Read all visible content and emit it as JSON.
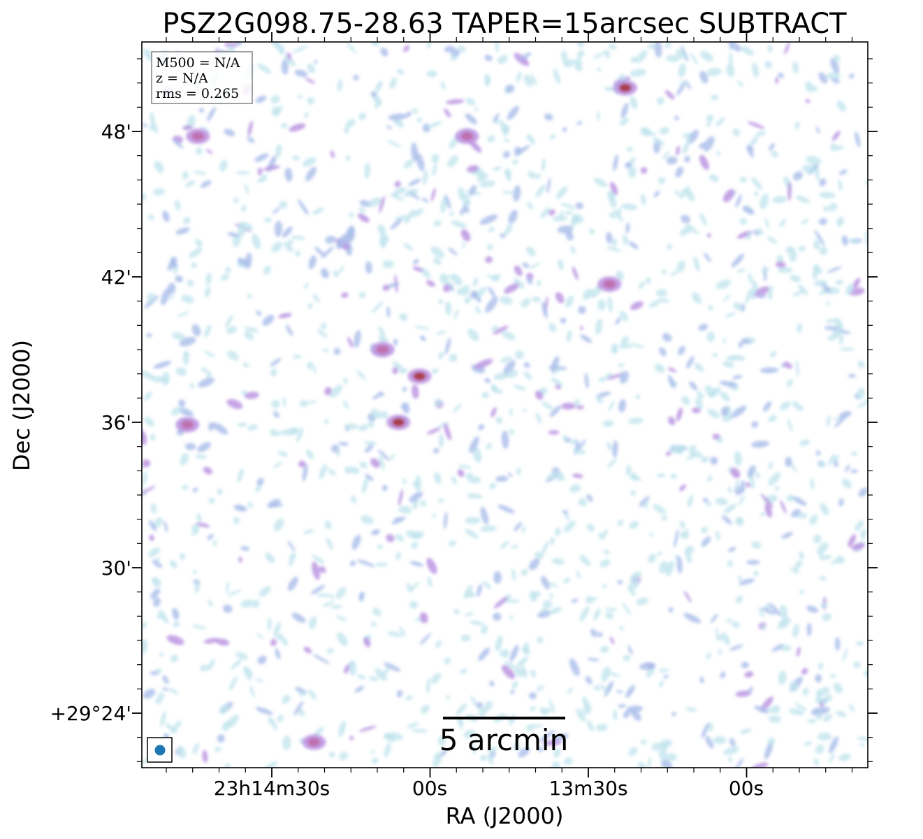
{
  "chart_data": {
    "type": "heatmap",
    "title": "PSZ2G098.75-28.63 TAPER=15arcsec SUBTRACT",
    "xlabel": "RA (J2000)",
    "ylabel": "Dec (J2000)",
    "x_ticks": [
      "23h14m30s",
      "00s",
      "13m30s",
      "00s"
    ],
    "y_ticks": [
      "+29°24'",
      "30'",
      "36'",
      "42'",
      "48'"
    ],
    "info_box": [
      "M500 = N/A",
      "z = N/A",
      "rms = 0.265"
    ],
    "scalebar_label": "5 arcmin",
    "colormap": [
      "#ffffff",
      "#bfe3ec",
      "#a9bdea",
      "#b88fe0",
      "#c06aa8",
      "#a8323c"
    ],
    "beam_color": "#1f77b4",
    "bright_blobs": [
      {
        "ra": "23h14m02s",
        "dec": "+29°37.9'",
        "level": 5
      },
      {
        "ra": "23h14m06s",
        "dec": "+29°36.0'",
        "level": 5
      },
      {
        "ra": "23h14m09s",
        "dec": "+29°39.0'",
        "level": 4
      },
      {
        "ra": "23h13m53s",
        "dec": "+29°47.8'",
        "level": 4
      },
      {
        "ra": "23h13m23s",
        "dec": "+29°49.8'",
        "level": 5
      },
      {
        "ra": "23h13m26s",
        "dec": "+29°41.7'",
        "level": 4
      },
      {
        "ra": "23h14m46s",
        "dec": "+29°35.9'",
        "level": 4
      },
      {
        "ra": "23h14m44s",
        "dec": "+29°47.8'",
        "level": 4
      },
      {
        "ra": "23h14m22s",
        "dec": "+29°22.8'",
        "level": 4
      }
    ]
  }
}
